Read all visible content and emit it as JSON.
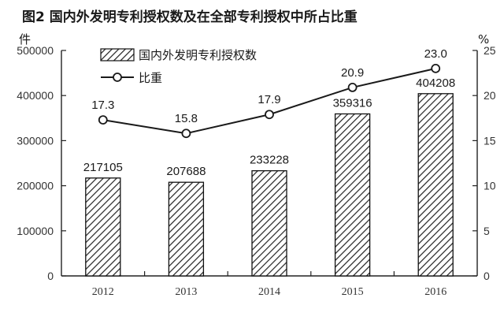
{
  "chart_data": {
    "type": "bar",
    "title": "图2  国内外发明专利授权数及在全部专利授权中所占比重",
    "categories": [
      "2012",
      "2013",
      "2014",
      "2015",
      "2016"
    ],
    "series": [
      {
        "name": "国内外发明专利授权数",
        "type": "bar",
        "axis": "left",
        "values": [
          217105,
          207688,
          233228,
          359316,
          404208
        ],
        "labels": [
          "217105",
          "207688",
          "233228",
          "359316",
          "404208"
        ]
      },
      {
        "name": "比重",
        "type": "line",
        "axis": "right",
        "values": [
          17.3,
          15.8,
          17.9,
          20.9,
          23.0
        ],
        "labels": [
          "17.3",
          "15.8",
          "17.9",
          "20.9",
          "23.0"
        ]
      }
    ],
    "y_left": {
      "unit": "件",
      "range": [
        0,
        500000
      ],
      "ticks": [
        "0",
        "100000",
        "200000",
        "300000",
        "400000",
        "500000"
      ]
    },
    "y_right": {
      "unit": "%",
      "range": [
        0,
        25
      ],
      "ticks": [
        "0",
        "5",
        "10",
        "15",
        "20",
        "25"
      ]
    },
    "legend_position": "top-left",
    "grid": false,
    "colors": {
      "axis": "#222222",
      "bar_stroke": "#111111",
      "hatch": "#222222",
      "line": "#1a1a1a",
      "marker_fill": "#ffffff"
    }
  }
}
